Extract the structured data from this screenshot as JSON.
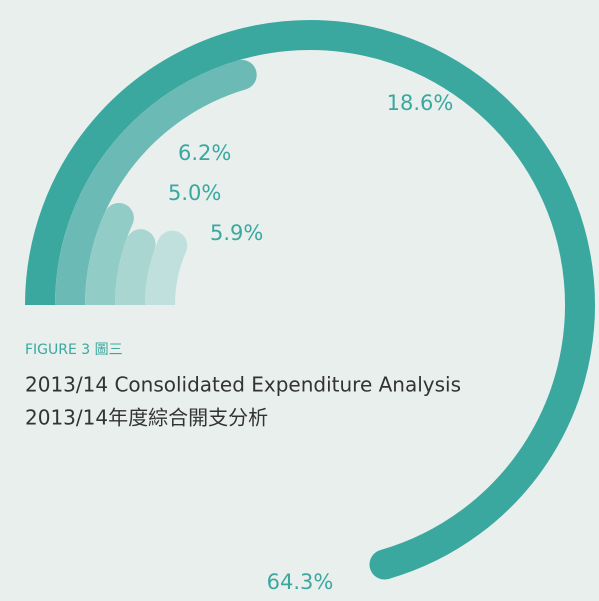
{
  "chart_data": {
    "type": "radial_bar",
    "label": "FIGURE 3 圖三",
    "title": "2013/14 Consolidated Expenditure Analysis",
    "subtitle": "2013/14年度綜合開支分析",
    "values": [
      64.3,
      18.6,
      6.2,
      5.0,
      5.9
    ],
    "value_labels": [
      "64.3%",
      "18.6%",
      "6.2%",
      "5.0%",
      "5.9%"
    ],
    "colors": [
      "#3ba89f",
      "#6cbab5",
      "#92ccc7",
      "#a9d6d1",
      "#bfe0dc"
    ]
  }
}
